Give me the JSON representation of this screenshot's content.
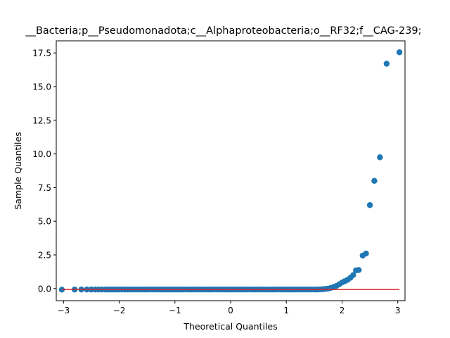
{
  "chart_data": {
    "type": "scatter",
    "title": "__Bacteria;p__Pseudomonadota;c__Alphaproteobacteria;o__RF32;f__CAG-239;",
    "xlabel": "Theoretical Quantiles",
    "ylabel": "Sample Quantiles",
    "xlim": [
      -3.13,
      3.13
    ],
    "ylim": [
      -0.9,
      18.4
    ],
    "xticks": [
      -3,
      -2,
      -1,
      0,
      1,
      2,
      3
    ],
    "xtick_labels": [
      "−3",
      "−2",
      "−1",
      "0",
      "1",
      "2",
      "3"
    ],
    "yticks": [
      0.0,
      2.5,
      5.0,
      7.5,
      10.0,
      12.5,
      15.0,
      17.5
    ],
    "ytick_labels": [
      "0.0",
      "2.5",
      "5.0",
      "7.5",
      "10.0",
      "12.5",
      "15.0",
      "17.5"
    ],
    "grid": false,
    "series": [
      {
        "marker_color": "#1f77b4",
        "x": [
          -3.03,
          -2.8,
          -2.68,
          -2.58,
          -2.5,
          -2.43,
          -2.37,
          -2.31,
          -2.25,
          -2.2,
          -2.15,
          -2.1,
          -2.05,
          -2.0,
          -1.95,
          -1.9,
          -1.85,
          -1.8,
          -1.75,
          -1.7,
          -1.65,
          -1.6,
          -1.55,
          -1.5,
          -1.45,
          -1.4,
          -1.35,
          -1.3,
          -1.25,
          -1.2,
          -1.15,
          -1.1,
          -1.05,
          -1.0,
          -0.95,
          -0.9,
          -0.85,
          -0.8,
          -0.75,
          -0.7,
          -0.65,
          -0.6,
          -0.55,
          -0.5,
          -0.45,
          -0.4,
          -0.35,
          -0.3,
          -0.25,
          -0.2,
          -0.15,
          -0.1,
          -0.05,
          0.0,
          0.05,
          0.1,
          0.15,
          0.2,
          0.25,
          0.3,
          0.35,
          0.4,
          0.45,
          0.5,
          0.55,
          0.6,
          0.65,
          0.7,
          0.75,
          0.8,
          0.85,
          0.9,
          0.95,
          1.0,
          1.05,
          1.1,
          1.15,
          1.2,
          1.25,
          1.3,
          1.35,
          1.4,
          1.45,
          1.5,
          1.55,
          1.6,
          1.65,
          1.7,
          1.75,
          1.8,
          1.85,
          1.9,
          1.95,
          2.0,
          2.05,
          2.1,
          2.15,
          2.2,
          2.25,
          2.3,
          2.37,
          2.43,
          2.5,
          2.58,
          2.68,
          2.8,
          3.03
        ],
        "y": [
          -0.08,
          -0.07,
          -0.07,
          -0.07,
          -0.07,
          -0.07,
          -0.07,
          -0.07,
          -0.07,
          -0.07,
          -0.07,
          -0.07,
          -0.07,
          -0.07,
          -0.07,
          -0.07,
          -0.07,
          -0.07,
          -0.07,
          -0.07,
          -0.07,
          -0.07,
          -0.07,
          -0.07,
          -0.07,
          -0.07,
          -0.07,
          -0.07,
          -0.07,
          -0.07,
          -0.07,
          -0.07,
          -0.07,
          -0.07,
          -0.07,
          -0.07,
          -0.07,
          -0.07,
          -0.07,
          -0.07,
          -0.07,
          -0.07,
          -0.07,
          -0.07,
          -0.07,
          -0.07,
          -0.07,
          -0.07,
          -0.07,
          -0.07,
          -0.07,
          -0.07,
          -0.07,
          -0.07,
          -0.07,
          -0.07,
          -0.07,
          -0.07,
          -0.07,
          -0.07,
          -0.07,
          -0.07,
          -0.07,
          -0.07,
          -0.07,
          -0.07,
          -0.07,
          -0.07,
          -0.07,
          -0.07,
          -0.07,
          -0.07,
          -0.07,
          -0.07,
          -0.07,
          -0.07,
          -0.07,
          -0.07,
          -0.07,
          -0.07,
          -0.07,
          -0.07,
          -0.07,
          -0.07,
          -0.07,
          -0.06,
          -0.05,
          -0.03,
          0.0,
          0.05,
          0.12,
          0.2,
          0.32,
          0.45,
          0.55,
          0.65,
          0.8,
          1.0,
          1.35,
          1.38,
          2.45,
          2.6,
          6.2,
          8.0,
          9.75,
          16.7,
          17.55
        ]
      },
      {
        "line_color": "#d62728",
        "x": [
          -3.03,
          3.03
        ],
        "y": [
          -0.07,
          -0.07
        ]
      }
    ]
  }
}
